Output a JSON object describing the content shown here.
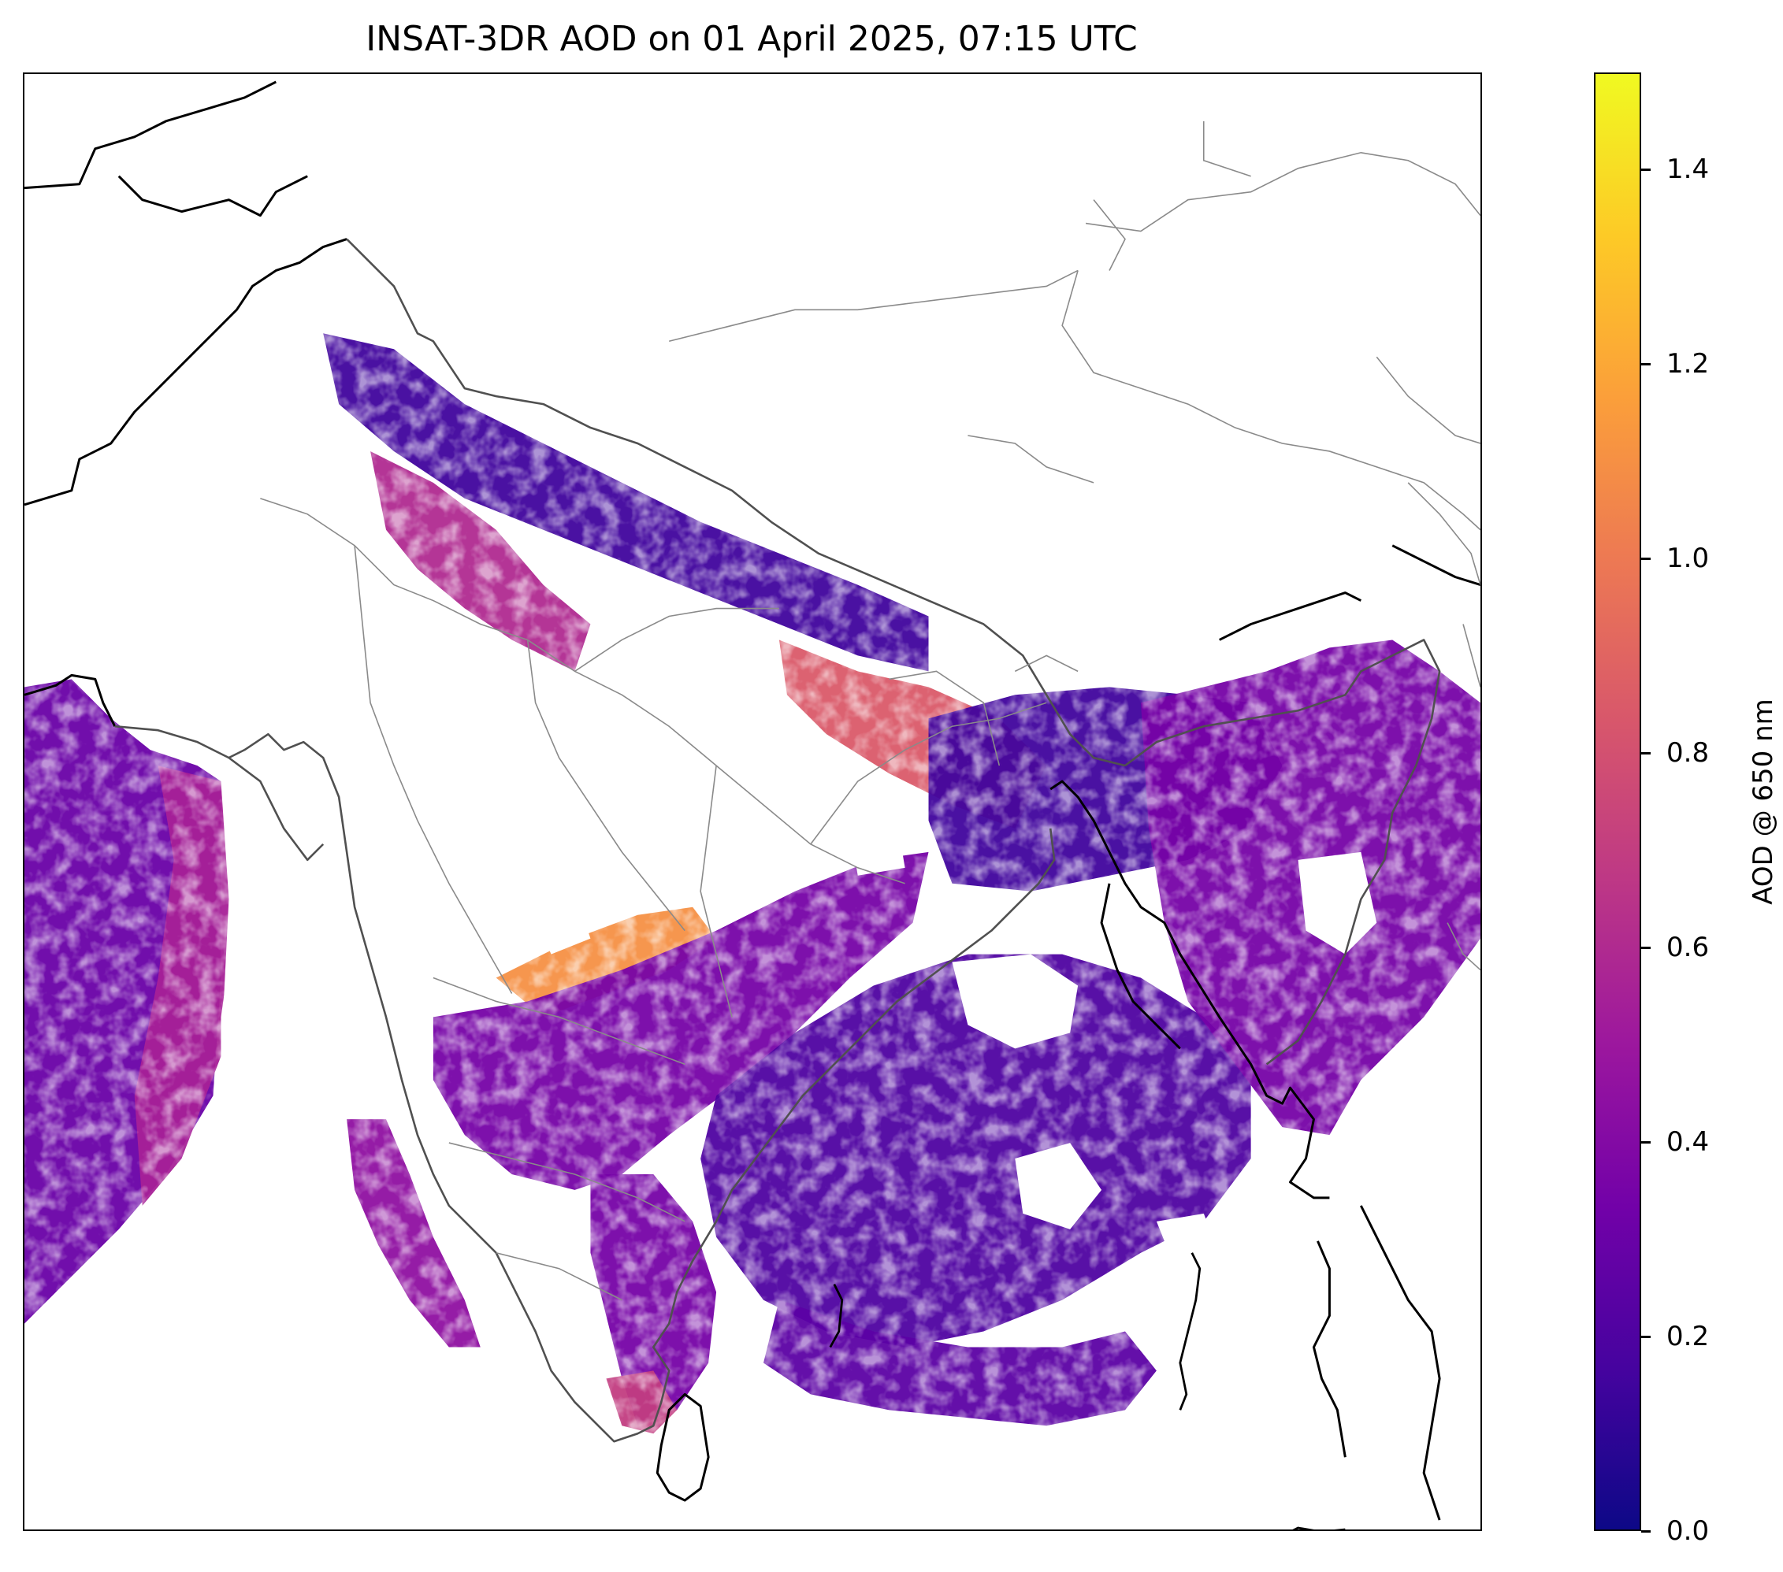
{
  "title": "INSAT-3DR AOD on 01 April 2025, 07:15 UTC",
  "colorbar": {
    "label": "AOD @ 650 nm",
    "colormap": "plasma",
    "min": 0.0,
    "max": 1.5,
    "ticks": [
      {
        "value": 0.0,
        "label": "0.0"
      },
      {
        "value": 0.2,
        "label": "0.2"
      },
      {
        "value": 0.4,
        "label": "0.4"
      },
      {
        "value": 0.6,
        "label": "0.6"
      },
      {
        "value": 0.8,
        "label": "0.8"
      },
      {
        "value": 1.0,
        "label": "1.0"
      },
      {
        "value": 1.2,
        "label": "1.2"
      },
      {
        "value": 1.4,
        "label": "1.4"
      }
    ],
    "stops": [
      "#0d0887",
      "#46039f",
      "#7201a8",
      "#9c179e",
      "#bd3786",
      "#d8576b",
      "#ed7953",
      "#fb9f3a",
      "#fdca26",
      "#f0f921"
    ]
  },
  "map": {
    "background": "#ffffff",
    "coastline_color": "#000000",
    "border_color": "#555555",
    "state_color": "#808080",
    "aod_regions": [
      {
        "name": "arabian-sea",
        "aod": 0.3
      },
      {
        "name": "arabian-sea-coastal-haze",
        "aod": 0.55
      },
      {
        "name": "western-himalaya",
        "aod": 0.15
      },
      {
        "name": "indo-gangetic-plain-west",
        "aod": 0.6
      },
      {
        "name": "indo-gangetic-plain-east",
        "aod": 0.85
      },
      {
        "name": "central-india-band",
        "aod": 1.1
      },
      {
        "name": "central-east-india",
        "aod": 0.35
      },
      {
        "name": "bay-of-bengal-north",
        "aod": 0.15
      },
      {
        "name": "bay-of-bengal-central",
        "aod": 0.2
      },
      {
        "name": "bay-of-bengal-south",
        "aod": 0.25
      },
      {
        "name": "bangladesh-myanmar",
        "aod": 0.35
      },
      {
        "name": "western-ghats-coast",
        "aod": 0.45
      },
      {
        "name": "south-india-east-coast",
        "aod": 0.35
      },
      {
        "name": "sri-lanka-north",
        "aod": 0.7
      }
    ]
  }
}
